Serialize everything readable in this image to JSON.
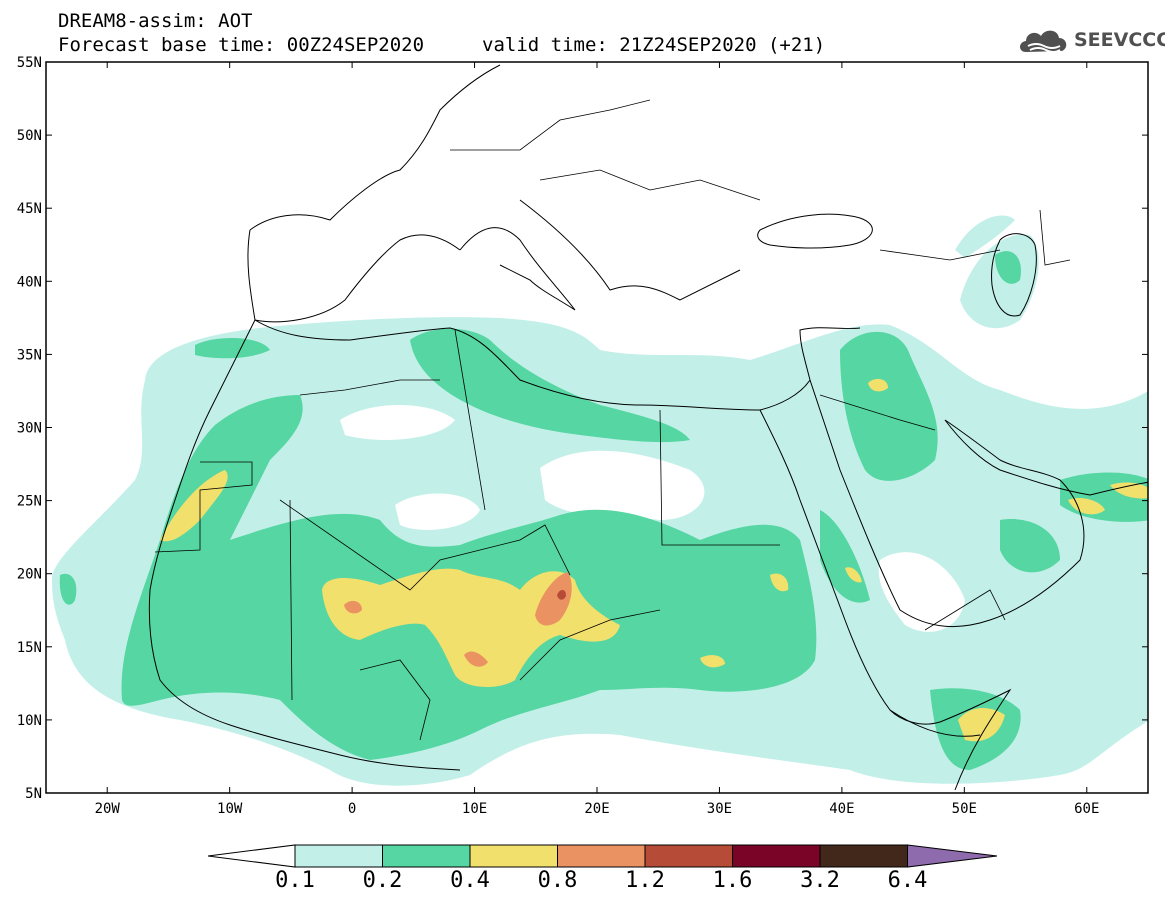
{
  "header": {
    "title": "DREAM8-assim: AOT",
    "base_time": "Forecast base time: 00Z24SEP2020",
    "valid_time": "valid time: 21Z24SEP2020 (+21)"
  },
  "logo": {
    "text": "SEEVCCC",
    "icon": "cloud-icon",
    "color": "#505050"
  },
  "map": {
    "lon_range": [
      -25,
      65
    ],
    "lat_range": [
      5,
      55
    ],
    "lon_ticks": [
      "20W",
      "10W",
      "0",
      "10E",
      "20E",
      "30E",
      "40E",
      "50E",
      "60E"
    ],
    "lat_ticks": [
      "55N",
      "50N",
      "45N",
      "40N",
      "35N",
      "30N",
      "25N",
      "20N",
      "15N",
      "10N",
      "5N"
    ]
  },
  "colorbar": {
    "labels": [
      "0.1",
      "0.2",
      "0.4",
      "0.8",
      "1.2",
      "1.6",
      "3.2",
      "6.4"
    ],
    "colors": [
      "#ffffff",
      "#c2f0e8",
      "#55d6a2",
      "#f2e06c",
      "#eb9263",
      "#b64c38",
      "#7a0428",
      "#42281a",
      "#8e6bac"
    ]
  }
}
